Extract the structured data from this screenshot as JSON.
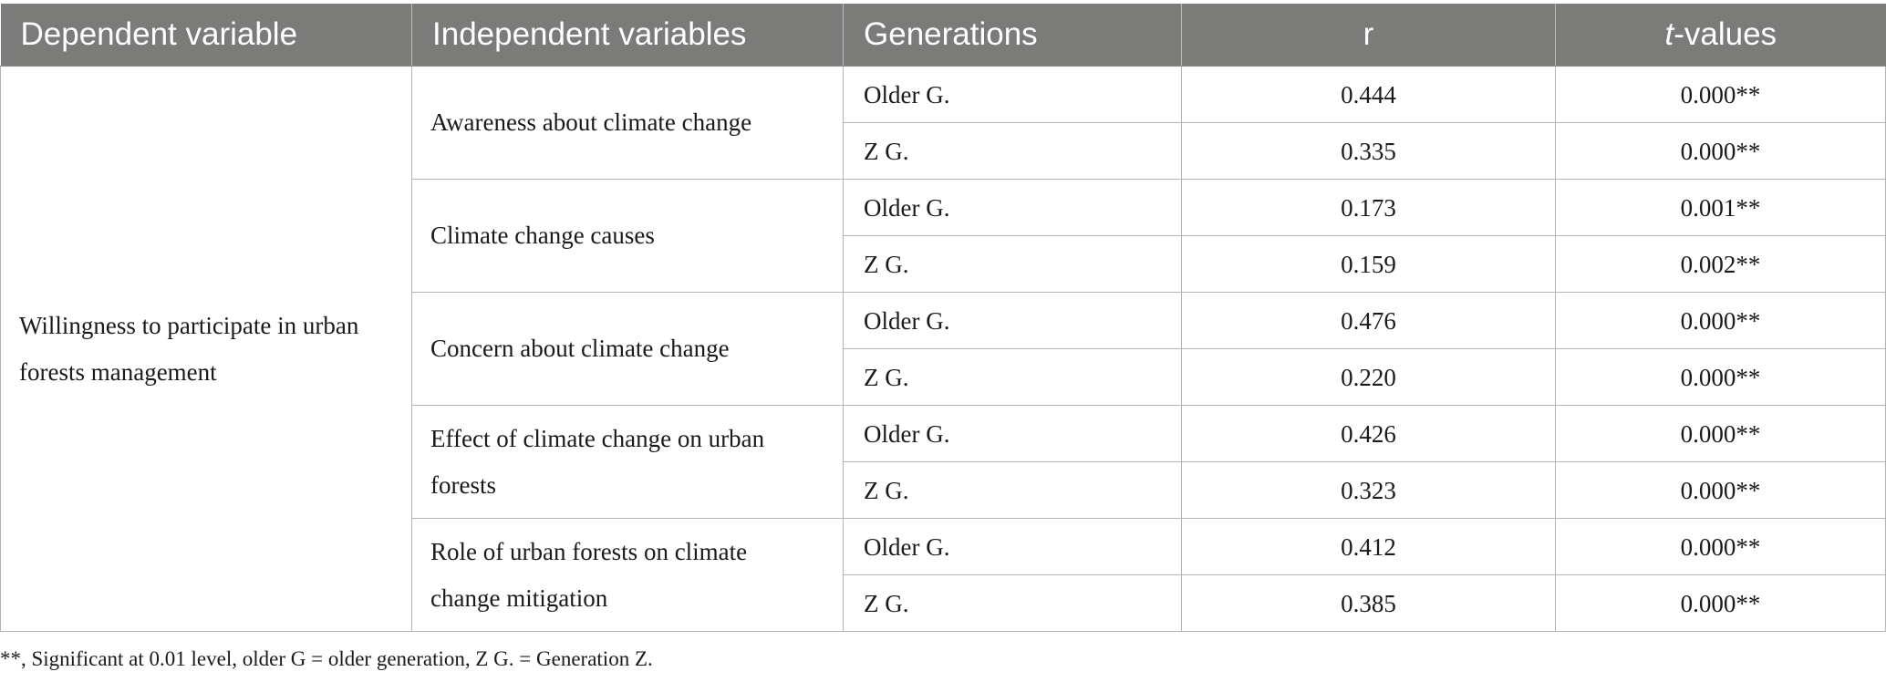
{
  "table": {
    "headers": {
      "dependent": "Dependent variable",
      "independent": "Independent variables",
      "generations": "Generations",
      "r": "r",
      "t_italic": "t",
      "t_rest": "-values"
    },
    "dependent_variable": "Willingness to participate in urban forests management",
    "groups": [
      {
        "independent": "Awareness about climate change",
        "rows": [
          {
            "generation": "Older G.",
            "r": "0.444",
            "t": "0.000**"
          },
          {
            "generation": "Z G.",
            "r": "0.335",
            "t": "0.000**"
          }
        ]
      },
      {
        "independent": "Climate change causes",
        "rows": [
          {
            "generation": "Older G.",
            "r": "0.173",
            "t": "0.001**"
          },
          {
            "generation": "Z G.",
            "r": "0.159",
            "t": "0.002**"
          }
        ]
      },
      {
        "independent": "Concern about climate change",
        "rows": [
          {
            "generation": "Older G.",
            "r": "0.476",
            "t": "0.000**"
          },
          {
            "generation": "Z G.",
            "r": "0.220",
            "t": "0.000**"
          }
        ]
      },
      {
        "independent": "Effect of climate change on urban forests",
        "rows": [
          {
            "generation": "Older G.",
            "r": "0.426",
            "t": "0.000**"
          },
          {
            "generation": "Z G.",
            "r": "0.323",
            "t": "0.000**"
          }
        ]
      },
      {
        "independent": "Role of urban forests on climate change mitigation",
        "rows": [
          {
            "generation": "Older G.",
            "r": "0.412",
            "t": "0.000**"
          },
          {
            "generation": "Z G.",
            "r": "0.385",
            "t": "0.000**"
          }
        ]
      }
    ]
  },
  "footnote": "**, Significant at 0.01 level, older G = older generation, Z G. = Generation Z.",
  "colors": {
    "header_background": "#7b7b7a",
    "header_text": "#ffffff",
    "grid_lines": "#b4b4b4"
  }
}
